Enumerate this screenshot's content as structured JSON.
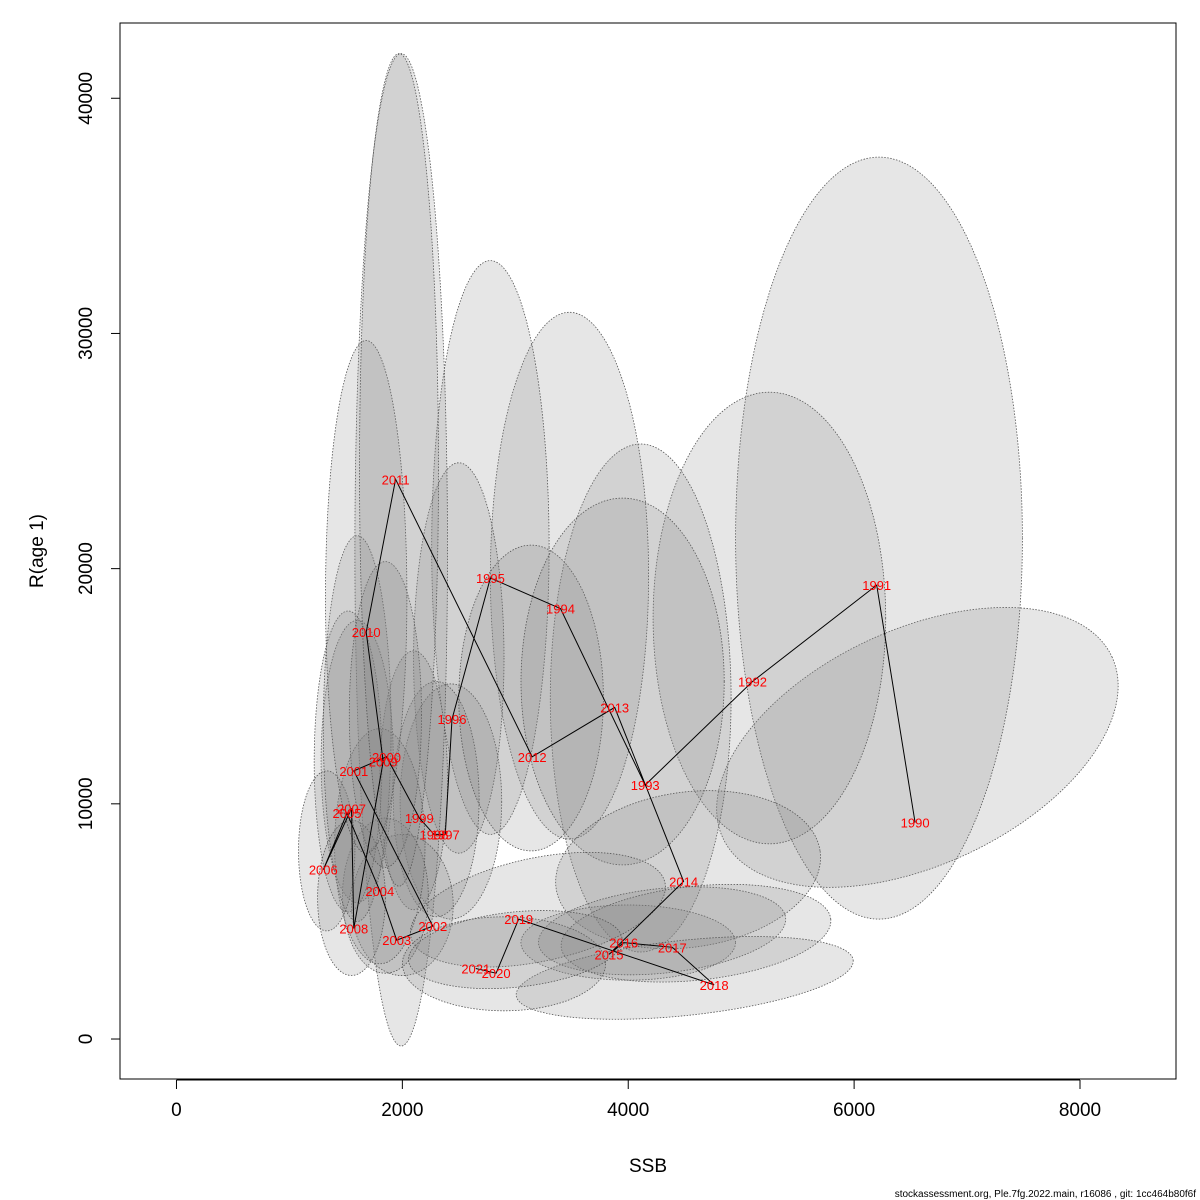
{
  "chart_data": {
    "type": "scatter",
    "xlabel": "SSB",
    "ylabel": "R(age 1)",
    "xlim": [
      -500,
      8850
    ],
    "ylim": [
      -1700,
      43200
    ],
    "x_ticks": [
      0,
      2000,
      4000,
      6000,
      8000
    ],
    "y_ticks": [
      0,
      10000,
      20000,
      30000,
      40000
    ],
    "ellipse_fill": "#808080",
    "ellipse_stroke": "#555555",
    "path_color": "#000000",
    "label_color": "#ff0000",
    "points": [
      {
        "year": "1990",
        "ssb": 6540,
        "r": 9200,
        "ellipse": {
          "cx": 6560,
          "cy": 12400,
          "rx": 1900,
          "ry": 5000,
          "rot": -25
        }
      },
      {
        "year": "1991",
        "ssb": 6200,
        "r": 19300,
        "ellipse": {
          "cx": 6220,
          "cy": 21300,
          "rx": 1270,
          "ry": 16200,
          "rot": 0
        }
      },
      {
        "year": "1992",
        "ssb": 5100,
        "r": 15200,
        "ellipse": {
          "cx": 5250,
          "cy": 17900,
          "rx": 1030,
          "ry": 9600,
          "rot": 0
        }
      },
      {
        "year": "1993",
        "ssb": 4150,
        "r": 10800,
        "ellipse": {
          "cx": 4110,
          "cy": 14500,
          "rx": 800,
          "ry": 10800,
          "rot": 0
        }
      },
      {
        "year": "1994",
        "ssb": 3400,
        "r": 18300,
        "ellipse": {
          "cx": 3480,
          "cy": 19700,
          "rx": 700,
          "ry": 11200,
          "rot": 0
        }
      },
      {
        "year": "1995",
        "ssb": 2780,
        "r": 19600,
        "ellipse": {
          "cx": 2780,
          "cy": 20900,
          "rx": 520,
          "ry": 12200,
          "rot": 0
        }
      },
      {
        "year": "1996",
        "ssb": 2440,
        "r": 13600,
        "ellipse": {
          "cx": 2500,
          "cy": 16200,
          "rx": 400,
          "ry": 8300,
          "rot": 0
        }
      },
      {
        "year": "1997",
        "ssb": 2380,
        "r": 8700,
        "ellipse": {
          "cx": 2430,
          "cy": 10100,
          "rx": 450,
          "ry": 5000,
          "rot": 0
        }
      },
      {
        "year": "1998",
        "ssb": 2280,
        "r": 8700,
        "ellipse": {
          "cx": 2300,
          "cy": 10200,
          "rx": 380,
          "ry": 5000,
          "rot": 0
        }
      },
      {
        "year": "1999",
        "ssb": 2150,
        "r": 9400,
        "ellipse": {
          "cx": 2100,
          "cy": 11000,
          "rx": 300,
          "ry": 5500,
          "rot": 0
        }
      },
      {
        "year": "2000",
        "ssb": 1860,
        "r": 12000,
        "ellipse": {
          "cx": 1990,
          "cy": 20800,
          "rx": 410,
          "ry": 21100,
          "rot": 0
        }
      },
      {
        "year": "2001",
        "ssb": 1570,
        "r": 11400,
        "ellipse": {
          "cx": 1600,
          "cy": 11800,
          "rx": 320,
          "ry": 6000,
          "rot": 0
        }
      },
      {
        "year": "2002",
        "ssb": 2270,
        "r": 4800,
        "ellipse": {
          "cx": 2000,
          "cy": 5700,
          "rx": 450,
          "ry": 3000,
          "rot": 0
        }
      },
      {
        "year": "2003",
        "ssb": 1950,
        "r": 4200,
        "ellipse": {
          "cx": 1850,
          "cy": 6100,
          "rx": 380,
          "ry": 3300,
          "rot": 0
        }
      },
      {
        "year": "2004",
        "ssb": 1800,
        "r": 6300,
        "ellipse": {
          "cx": 1800,
          "cy": 8200,
          "rx": 400,
          "ry": 5000,
          "rot": 0
        }
      },
      {
        "year": "2005",
        "ssb": 1510,
        "r": 9600,
        "ellipse": {
          "cx": 1520,
          "cy": 11800,
          "rx": 300,
          "ry": 6400,
          "rot": 0
        }
      },
      {
        "year": "2006",
        "ssb": 1300,
        "r": 7200,
        "ellipse": {
          "cx": 1330,
          "cy": 8000,
          "rx": 250,
          "ry": 3400,
          "rot": 0
        }
      },
      {
        "year": "2007",
        "ssb": 1550,
        "r": 9800,
        "ellipse": {
          "cx": 1600,
          "cy": 13200,
          "rx": 300,
          "ry": 8200,
          "rot": 0
        }
      },
      {
        "year": "2008",
        "ssb": 1570,
        "r": 4700,
        "ellipse": {
          "cx": 1550,
          "cy": 6000,
          "rx": 300,
          "ry": 3300,
          "rot": 0
        }
      },
      {
        "year": "2009",
        "ssb": 1830,
        "r": 11800,
        "ellipse": {
          "cx": 1850,
          "cy": 13800,
          "rx": 320,
          "ry": 6500,
          "rot": 0
        }
      },
      {
        "year": "2010",
        "ssb": 1680,
        "r": 17300,
        "ellipse": {
          "cx": 1680,
          "cy": 18800,
          "rx": 360,
          "ry": 10900,
          "rot": 0
        }
      },
      {
        "year": "2011",
        "ssb": 1940,
        "r": 23800,
        "ellipse": {
          "cx": 1970,
          "cy": 24200,
          "rx": 350,
          "ry": 17700,
          "rot": 0
        }
      },
      {
        "year": "2012",
        "ssb": 3150,
        "r": 12000,
        "ellipse": {
          "cx": 3140,
          "cy": 14500,
          "rx": 640,
          "ry": 6500,
          "rot": 0
        }
      },
      {
        "year": "2013",
        "ssb": 3880,
        "r": 14100,
        "ellipse": {
          "cx": 3950,
          "cy": 15200,
          "rx": 900,
          "ry": 7800,
          "rot": 0
        }
      },
      {
        "year": "2014",
        "ssb": 4490,
        "r": 6700,
        "ellipse": {
          "cx": 4530,
          "cy": 7200,
          "rx": 1180,
          "ry": 3300,
          "rot": -8
        }
      },
      {
        "year": "2015",
        "ssb": 3830,
        "r": 3600,
        "ellipse": {
          "cx": 4000,
          "cy": 4100,
          "rx": 950,
          "ry": 1600,
          "rot": 0
        }
      },
      {
        "year": "2016",
        "ssb": 3960,
        "r": 4100,
        "ellipse": {
          "cx": 4300,
          "cy": 4600,
          "rx": 1100,
          "ry": 1800,
          "rot": -6
        }
      },
      {
        "year": "2017",
        "ssb": 4390,
        "r": 3900,
        "ellipse": {
          "cx": 4600,
          "cy": 4500,
          "rx": 1200,
          "ry": 2000,
          "rot": -6
        }
      },
      {
        "year": "2018",
        "ssb": 4760,
        "r": 2300,
        "ellipse": {
          "cx": 4500,
          "cy": 2600,
          "rx": 1500,
          "ry": 1600,
          "rot": -6
        }
      },
      {
        "year": "2019",
        "ssb": 3030,
        "r": 5100,
        "ellipse": {
          "cx": 3200,
          "cy": 5500,
          "rx": 1150,
          "ry": 2200,
          "rot": -12
        }
      },
      {
        "year": "2020",
        "ssb": 2830,
        "r": 2800,
        "ellipse": {
          "cx": 2900,
          "cy": 3200,
          "rx": 900,
          "ry": 2000,
          "rot": 0
        }
      },
      {
        "year": "2021",
        "ssb": 2650,
        "r": 3000,
        "ellipse": {
          "cx": 3000,
          "cy": 3800,
          "rx": 950,
          "ry": 1600,
          "rot": -6
        }
      }
    ]
  },
  "footer": "stockassessment.org, Ple.7fg.2022.main, r16086 , git: 1cc464b80f6f"
}
